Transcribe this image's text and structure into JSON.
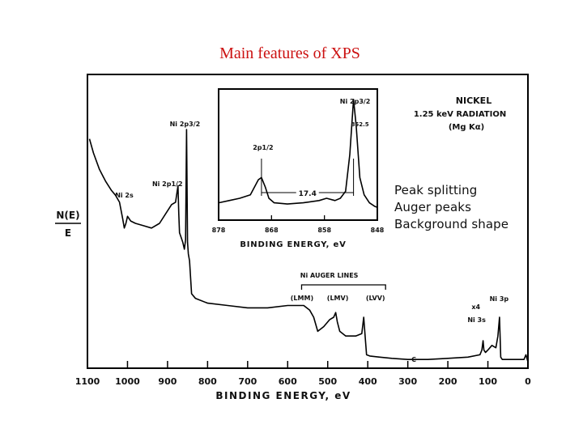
{
  "slide": {
    "title": "Main features of XPS",
    "notes": [
      "Peak splitting",
      "Auger peaks",
      "Background shape"
    ]
  },
  "chart_data": {
    "type": "line",
    "title": "",
    "header_lines": [
      "NICKEL",
      "1.25 keV RADIATION",
      "(Mg Kα)"
    ],
    "xlabel": "BINDING ENERGY, eV",
    "ylabel": "N(E) / E",
    "x_reversed": true,
    "xlim": [
      1100,
      0
    ],
    "xticks": [
      1100,
      1000,
      900,
      800,
      700,
      600,
      500,
      400,
      300,
      200,
      100,
      0
    ],
    "grid": false,
    "y_units": "arbitrary (relative intensity, 0-1)",
    "series": [
      {
        "x": [
          1095,
          1085,
          1070,
          1055,
          1040,
          1030,
          1020,
          1012,
          1008,
          1004,
          1000,
          992,
          980,
          960,
          940,
          920,
          905,
          890,
          880,
          874,
          872,
          870,
          866,
          862,
          858,
          855,
          852.5,
          850,
          848,
          845,
          840,
          830,
          800,
          750,
          700,
          650,
          600,
          560,
          545,
          535,
          525,
          510,
          495,
          485,
          480,
          476,
          470,
          455,
          430,
          415,
          410,
          407,
          403,
          395,
          370,
          340,
          300,
          250,
          200,
          150,
          120,
          115,
          112,
          110,
          106,
          100,
          90,
          80,
          75,
          71,
          68,
          64,
          55,
          40,
          20,
          10,
          5,
          0
        ],
        "y": [
          0.96,
          0.9,
          0.83,
          0.78,
          0.74,
          0.72,
          0.69,
          0.62,
          0.58,
          0.6,
          0.63,
          0.61,
          0.6,
          0.59,
          0.58,
          0.6,
          0.64,
          0.68,
          0.69,
          0.76,
          0.64,
          0.56,
          0.54,
          0.52,
          0.49,
          0.53,
          1.0,
          0.52,
          0.47,
          0.44,
          0.3,
          0.28,
          0.26,
          0.25,
          0.24,
          0.24,
          0.25,
          0.25,
          0.23,
          0.2,
          0.14,
          0.16,
          0.19,
          0.2,
          0.22,
          0.18,
          0.14,
          0.12,
          0.12,
          0.13,
          0.2,
          0.13,
          0.04,
          0.035,
          0.03,
          0.025,
          0.02,
          0.02,
          0.025,
          0.03,
          0.04,
          0.06,
          0.1,
          0.06,
          0.05,
          0.06,
          0.08,
          0.07,
          0.12,
          0.2,
          0.03,
          0.02,
          0.02,
          0.02,
          0.02,
          0.02,
          0.04,
          0.01
        ]
      }
    ],
    "annotations": [
      {
        "text": "Ni 2s",
        "x": 1008
      },
      {
        "text": "Ni 2p3/2",
        "x": 852.5
      },
      {
        "text": "Ni 2p1/2",
        "x": 872
      },
      {
        "text": "Ni AUGER LINES",
        "x": 480
      },
      {
        "text": "(LMM)",
        "x": 540
      },
      {
        "text": "(LMV)",
        "x": 475
      },
      {
        "text": "(LVV)",
        "x": 405
      },
      {
        "text": "C",
        "x": 285
      },
      {
        "text": "x4",
        "x": 130
      },
      {
        "text": "Ni 3s",
        "x": 112
      },
      {
        "text": "Ni 3p",
        "x": 68
      }
    ],
    "inset": {
      "type": "line",
      "xlabel": "BINDING ENERGY, eV",
      "x_reversed": true,
      "xlim": [
        878,
        848
      ],
      "xticks": [
        878,
        868,
        858,
        848
      ],
      "splitting_label": "17.4",
      "peak_value_label": "852.5",
      "series": [
        {
          "x": [
            878,
            876,
            874,
            872,
            870.5,
            869.9,
            869.2,
            868.5,
            867.5,
            865,
            862,
            859,
            857.6,
            856,
            855,
            854,
            853.2,
            852.5,
            852,
            851.3,
            850.5,
            849.5,
            848.5,
            848
          ],
          "y": [
            0.08,
            0.1,
            0.12,
            0.15,
            0.28,
            0.3,
            0.22,
            0.12,
            0.08,
            0.07,
            0.08,
            0.1,
            0.12,
            0.1,
            0.12,
            0.18,
            0.5,
            0.98,
            0.75,
            0.3,
            0.15,
            0.08,
            0.05,
            0.04
          ]
        }
      ],
      "annotations": [
        {
          "text": "Ni 2p3/2",
          "x": 852.5
        },
        {
          "text": "2p1/2",
          "x": 869.9
        }
      ]
    }
  }
}
